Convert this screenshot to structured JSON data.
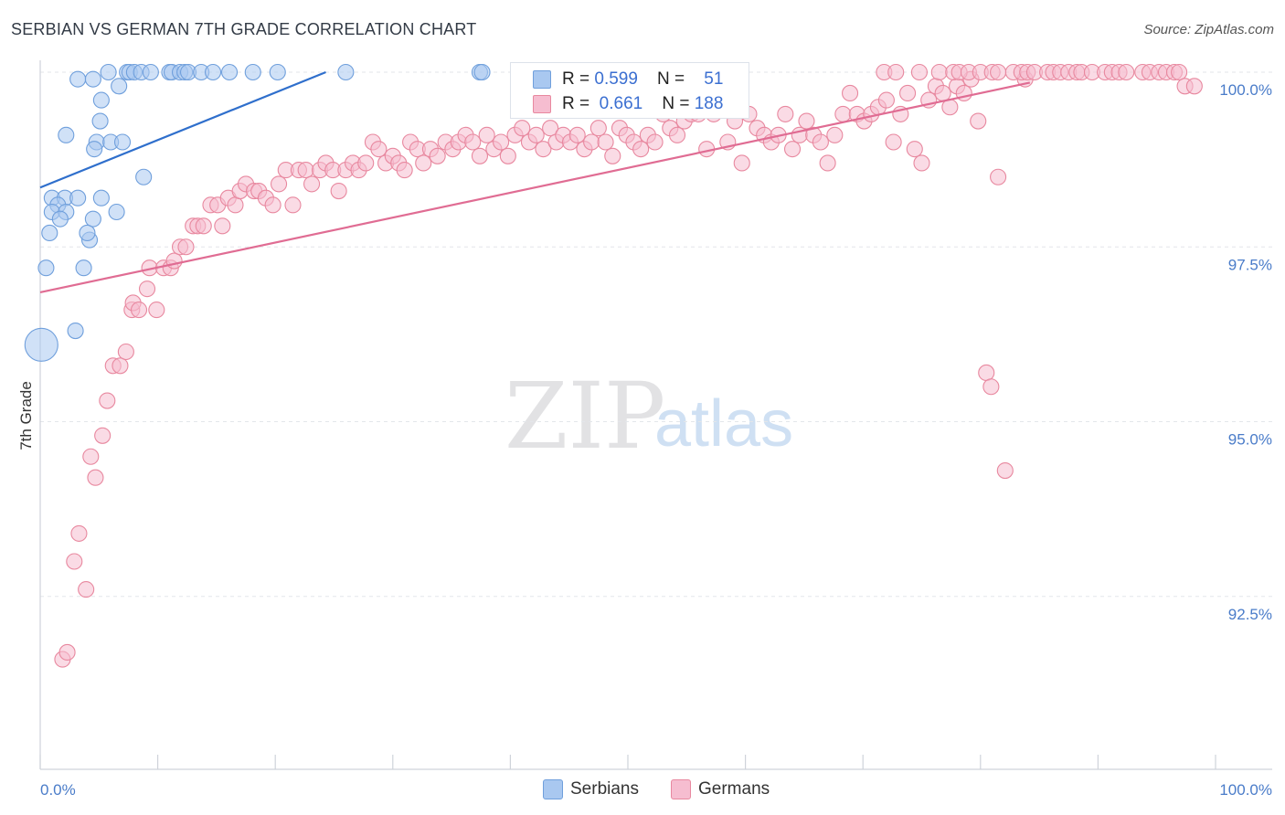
{
  "title": "SERBIAN VS GERMAN 7TH GRADE CORRELATION CHART",
  "source": "Source: ZipAtlas.com",
  "watermark": {
    "zip": "ZIP",
    "atlas": "atlas"
  },
  "legend": {
    "rows": [
      {
        "r_label": "R = ",
        "r_value": "0.599",
        "n_label": "N = ",
        "n_value": "51",
        "color": "#a9c8f0",
        "border": "#6f9fdc"
      },
      {
        "r_label": "R = ",
        "r_value": "0.661",
        "n_label": "N = ",
        "n_value": "188",
        "color": "#f6bdd0",
        "border": "#e8889f"
      }
    ]
  },
  "bottom_legend": [
    {
      "label": "Serbians",
      "color": "#a9c8f0",
      "border": "#6f9fdc"
    },
    {
      "label": "Germans",
      "color": "#f6bdd0",
      "border": "#e8889f"
    }
  ],
  "chart_data": {
    "type": "scatter",
    "title": "SERBIAN VS GERMAN 7TH GRADE CORRELATION CHART",
    "xlabel": "",
    "ylabel": "7th Grade",
    "xlim": [
      0,
      100
    ],
    "ylim": [
      90.0,
      100.25
    ],
    "x_tick_labels": {
      "left": "0.0%",
      "right": "100.0%"
    },
    "y_ticks": [
      {
        "value": 100.0,
        "label": "100.0%"
      },
      {
        "value": 97.5,
        "label": "97.5%"
      },
      {
        "value": 95.0,
        "label": "95.0%"
      },
      {
        "value": 92.5,
        "label": "92.5%"
      }
    ],
    "series": [
      {
        "name": "Serbians",
        "color": "#a9c8f0",
        "stroke": "#6f9fdc",
        "line_color": "#2f6fcc",
        "trend": {
          "x": [
            0,
            24.3
          ],
          "y": [
            98.35,
            100.0
          ]
        },
        "points": [
          [
            5.8,
            100
          ],
          [
            7.4,
            100
          ],
          [
            7.6,
            100
          ],
          [
            8.0,
            100
          ],
          [
            8.6,
            100
          ],
          [
            9.4,
            100
          ],
          [
            11.0,
            100
          ],
          [
            11.2,
            100
          ],
          [
            11.9,
            100
          ],
          [
            12.3,
            100
          ],
          [
            12.6,
            100
          ],
          [
            13.7,
            100
          ],
          [
            14.7,
            100
          ],
          [
            16.1,
            100
          ],
          [
            18.1,
            100
          ],
          [
            20.2,
            100
          ],
          [
            26.0,
            100
          ],
          [
            37.4,
            100
          ],
          [
            37.6,
            100
          ],
          [
            3.2,
            99.9
          ],
          [
            4.5,
            99.9
          ],
          [
            6.7,
            99.8
          ],
          [
            5.2,
            99.6
          ],
          [
            5.1,
            99.3
          ],
          [
            2.2,
            99.1
          ],
          [
            4.8,
            99.0
          ],
          [
            6.0,
            99.0
          ],
          [
            7.0,
            99.0
          ],
          [
            4.6,
            98.9
          ],
          [
            8.8,
            98.5
          ],
          [
            1.0,
            98.2
          ],
          [
            2.1,
            98.2
          ],
          [
            1.5,
            98.1
          ],
          [
            3.2,
            98.2
          ],
          [
            5.2,
            98.2
          ],
          [
            1.0,
            98.0
          ],
          [
            2.2,
            98.0
          ],
          [
            6.5,
            98.0
          ],
          [
            1.7,
            97.9
          ],
          [
            4.5,
            97.9
          ],
          [
            0.8,
            97.7
          ],
          [
            4.2,
            97.6
          ],
          [
            4.0,
            97.7
          ],
          [
            0.5,
            97.2
          ],
          [
            3.7,
            97.2
          ],
          [
            3.0,
            96.3
          ],
          [
            0.1,
            96.1
          ]
        ]
      },
      {
        "name": "Germans",
        "color": "#f6bdd0",
        "stroke": "#e8889f",
        "line_color": "#e06c93",
        "trend": {
          "x": [
            0,
            84.2
          ],
          "y": [
            96.85,
            99.85
          ]
        },
        "points": [
          [
            1.9,
            91.6
          ],
          [
            2.3,
            91.7
          ],
          [
            2.9,
            93.0
          ],
          [
            3.3,
            93.4
          ],
          [
            3.9,
            92.6
          ],
          [
            4.3,
            94.5
          ],
          [
            4.7,
            94.2
          ],
          [
            5.3,
            94.8
          ],
          [
            5.7,
            95.3
          ],
          [
            6.2,
            95.8
          ],
          [
            6.8,
            95.8
          ],
          [
            7.3,
            96.0
          ],
          [
            7.8,
            96.6
          ],
          [
            7.9,
            96.7
          ],
          [
            8.4,
            96.6
          ],
          [
            9.1,
            96.9
          ],
          [
            9.3,
            97.2
          ],
          [
            9.9,
            96.6
          ],
          [
            10.5,
            97.2
          ],
          [
            11.1,
            97.2
          ],
          [
            11.4,
            97.3
          ],
          [
            11.9,
            97.5
          ],
          [
            12.4,
            97.5
          ],
          [
            13.0,
            97.8
          ],
          [
            13.4,
            97.8
          ],
          [
            13.9,
            97.8
          ],
          [
            14.5,
            98.1
          ],
          [
            15.1,
            98.1
          ],
          [
            15.5,
            97.8
          ],
          [
            16.0,
            98.2
          ],
          [
            16.6,
            98.1
          ],
          [
            17.0,
            98.3
          ],
          [
            17.5,
            98.4
          ],
          [
            18.2,
            98.3
          ],
          [
            18.6,
            98.3
          ],
          [
            19.2,
            98.2
          ],
          [
            19.8,
            98.1
          ],
          [
            20.3,
            98.4
          ],
          [
            20.9,
            98.6
          ],
          [
            21.5,
            98.1
          ],
          [
            22.0,
            98.6
          ],
          [
            22.6,
            98.6
          ],
          [
            23.1,
            98.4
          ],
          [
            23.8,
            98.6
          ],
          [
            24.3,
            98.7
          ],
          [
            24.9,
            98.6
          ],
          [
            25.4,
            98.3
          ],
          [
            26.0,
            98.6
          ],
          [
            26.6,
            98.7
          ],
          [
            27.1,
            98.6
          ],
          [
            27.7,
            98.7
          ],
          [
            28.3,
            99.0
          ],
          [
            28.8,
            98.9
          ],
          [
            29.4,
            98.7
          ],
          [
            30.0,
            98.8
          ],
          [
            30.5,
            98.7
          ],
          [
            31.0,
            98.6
          ],
          [
            31.5,
            99.0
          ],
          [
            32.1,
            98.9
          ],
          [
            32.6,
            98.7
          ],
          [
            33.2,
            98.9
          ],
          [
            33.8,
            98.8
          ],
          [
            34.5,
            99.0
          ],
          [
            35.1,
            98.9
          ],
          [
            35.6,
            99.0
          ],
          [
            36.2,
            99.1
          ],
          [
            36.8,
            99.0
          ],
          [
            37.4,
            98.8
          ],
          [
            38.0,
            99.1
          ],
          [
            38.6,
            98.9
          ],
          [
            39.2,
            99.0
          ],
          [
            39.8,
            98.8
          ],
          [
            40.4,
            99.1
          ],
          [
            41.0,
            99.2
          ],
          [
            41.6,
            99.0
          ],
          [
            42.2,
            99.1
          ],
          [
            42.8,
            98.9
          ],
          [
            43.4,
            99.2
          ],
          [
            43.9,
            99.0
          ],
          [
            44.5,
            99.1
          ],
          [
            45.1,
            99.0
          ],
          [
            45.7,
            99.1
          ],
          [
            46.3,
            98.9
          ],
          [
            46.9,
            99.0
          ],
          [
            47.5,
            99.2
          ],
          [
            48.1,
            99.0
          ],
          [
            48.7,
            98.8
          ],
          [
            49.3,
            99.2
          ],
          [
            49.9,
            99.1
          ],
          [
            50.5,
            99.0
          ],
          [
            51.1,
            98.9
          ],
          [
            51.7,
            99.1
          ],
          [
            52.3,
            99.0
          ],
          [
            53.0,
            99.4
          ],
          [
            53.6,
            99.2
          ],
          [
            54.2,
            99.1
          ],
          [
            54.8,
            99.3
          ],
          [
            55.4,
            99.4
          ],
          [
            56.0,
            99.4
          ],
          [
            56.7,
            98.9
          ],
          [
            57.3,
            99.4
          ],
          [
            57.9,
            99.5
          ],
          [
            58.5,
            99.0
          ],
          [
            59.1,
            99.3
          ],
          [
            59.7,
            98.7
          ],
          [
            60.3,
            99.4
          ],
          [
            61.0,
            99.2
          ],
          [
            61.6,
            99.1
          ],
          [
            62.2,
            99.0
          ],
          [
            62.8,
            99.1
          ],
          [
            63.4,
            99.4
          ],
          [
            64.0,
            98.9
          ],
          [
            64.6,
            99.1
          ],
          [
            65.2,
            99.3
          ],
          [
            65.8,
            99.1
          ],
          [
            66.4,
            99.0
          ],
          [
            67.0,
            98.7
          ],
          [
            67.6,
            99.1
          ],
          [
            68.3,
            99.4
          ],
          [
            68.9,
            99.7
          ],
          [
            69.5,
            99.4
          ],
          [
            70.1,
            99.3
          ],
          [
            70.7,
            99.4
          ],
          [
            71.3,
            99.5
          ],
          [
            72.0,
            99.6
          ],
          [
            72.6,
            99.0
          ],
          [
            73.2,
            99.4
          ],
          [
            73.8,
            99.7
          ],
          [
            74.4,
            98.9
          ],
          [
            75.0,
            98.7
          ],
          [
            75.6,
            99.6
          ],
          [
            76.2,
            99.8
          ],
          [
            76.8,
            99.7
          ],
          [
            77.4,
            99.5
          ],
          [
            78.0,
            99.8
          ],
          [
            78.6,
            99.7
          ],
          [
            79.2,
            99.9
          ],
          [
            79.8,
            99.3
          ],
          [
            80.5,
            95.7
          ],
          [
            80.9,
            95.5
          ],
          [
            81.5,
            98.5
          ],
          [
            82.1,
            94.3
          ],
          [
            83.8,
            99.9
          ],
          [
            71.8,
            100
          ],
          [
            72.8,
            100
          ],
          [
            74.8,
            100
          ],
          [
            76.5,
            100
          ],
          [
            77.7,
            100
          ],
          [
            78.2,
            100
          ],
          [
            79.0,
            100
          ],
          [
            80.0,
            100
          ],
          [
            81.0,
            100
          ],
          [
            81.5,
            100
          ],
          [
            82.8,
            100
          ],
          [
            83.5,
            100
          ],
          [
            84.0,
            100
          ],
          [
            84.6,
            100
          ],
          [
            85.7,
            100
          ],
          [
            86.2,
            100
          ],
          [
            86.8,
            100
          ],
          [
            87.5,
            100
          ],
          [
            88.2,
            100
          ],
          [
            88.6,
            100
          ],
          [
            89.5,
            100
          ],
          [
            90.6,
            100
          ],
          [
            91.2,
            100
          ],
          [
            91.8,
            100
          ],
          [
            92.4,
            100
          ],
          [
            93.8,
            100
          ],
          [
            94.4,
            100
          ],
          [
            95.2,
            100
          ],
          [
            95.8,
            100
          ],
          [
            96.5,
            100
          ],
          [
            96.9,
            100
          ],
          [
            97.4,
            99.8
          ],
          [
            98.2,
            99.8
          ]
        ]
      }
    ]
  }
}
